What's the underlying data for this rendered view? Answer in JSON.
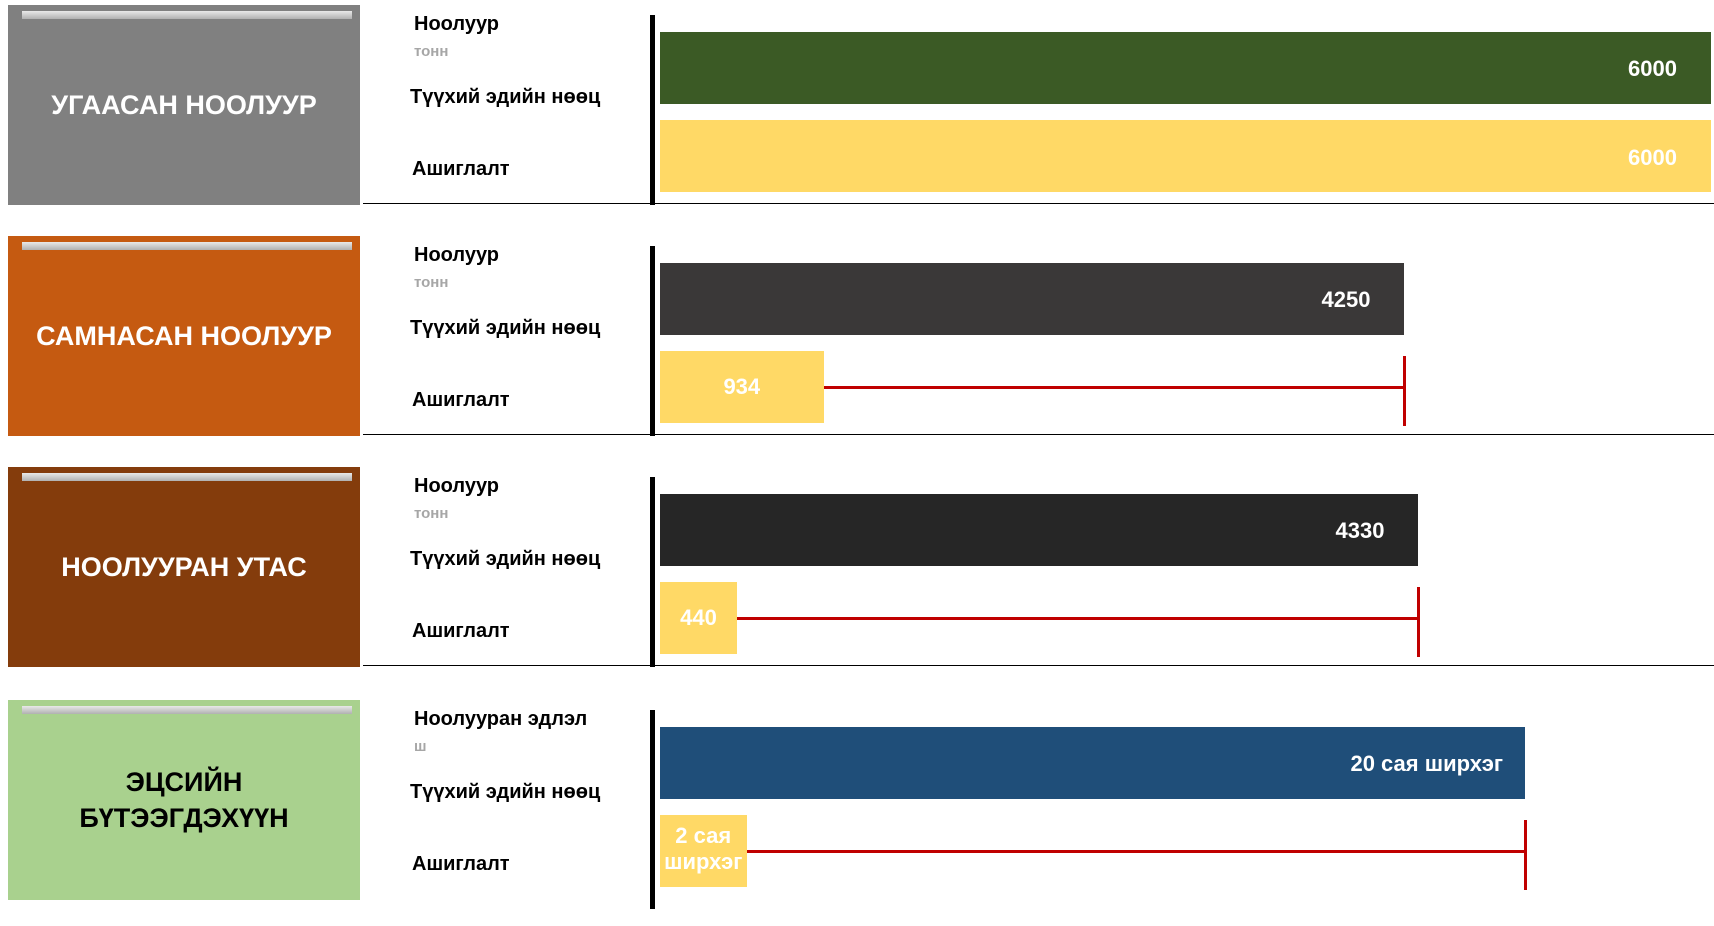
{
  "colors": {
    "muted_unit": "#a6a6a6",
    "gap_marker": "#c00000",
    "usage_bar": "#ffd966"
  },
  "chart_data": [
    {
      "type": "bar",
      "orientation": "horizontal",
      "panel_title": "УГААСАН НООЛУУР",
      "panel_color": "#808080",
      "panel_text_color": "#ffffff",
      "product_label": "Ноолуур",
      "unit": "тонн",
      "categories": [
        "Түүхий эдийн нөөц",
        "Ашиглалт"
      ],
      "values": [
        6000,
        6000
      ],
      "value_labels": [
        "6000",
        "6000"
      ],
      "bar_colors": [
        "#3b5a25",
        "#ffd966"
      ],
      "reserve_label_color": "#ffffff",
      "usage_label_color": "#ffffff",
      "show_gap": false,
      "xlim": [
        0,
        6000
      ]
    },
    {
      "type": "bar",
      "orientation": "horizontal",
      "panel_title": "САМНАСАН НООЛУУР",
      "panel_color": "#c55a11",
      "panel_text_color": "#ffffff",
      "product_label": "Ноолуур",
      "unit": "тонн",
      "categories": [
        "Түүхий эдийн нөөц",
        "Ашиглалт"
      ],
      "values": [
        4250,
        934
      ],
      "value_labels": [
        "4250",
        "934"
      ],
      "bar_colors": [
        "#3a3838",
        "#ffd966"
      ],
      "reserve_label_color": "#ffffff",
      "usage_label_color": "#ffffff",
      "show_gap": true,
      "xlim": [
        0,
        6000
      ]
    },
    {
      "type": "bar",
      "orientation": "horizontal",
      "panel_title": "НООЛУУРАН УТАС",
      "panel_color": "#843c0c",
      "panel_text_color": "#ffffff",
      "product_label": "Ноолуур",
      "unit": "тонн",
      "categories": [
        "Түүхий эдийн нөөц",
        "Ашиглалт"
      ],
      "values": [
        4330,
        440
      ],
      "value_labels": [
        "4330",
        "440"
      ],
      "bar_colors": [
        "#262626",
        "#ffd966"
      ],
      "reserve_label_color": "#ffffff",
      "usage_label_color": "#ffffff",
      "show_gap": true,
      "xlim": [
        0,
        6000
      ]
    },
    {
      "type": "bar",
      "orientation": "horizontal",
      "panel_title": "ЭЦСИЙН БҮТЭЭГДЭХҮҮН",
      "panel_color": "#a9d18e",
      "panel_text_color": "#000000",
      "product_label": "Ноолууран эдлэл",
      "unit": "ш",
      "categories": [
        "Түүхий эдийн нөөц",
        "Ашиглалт"
      ],
      "values": [
        20,
        2
      ],
      "value_labels": [
        "20 сая ширхэг",
        "2 сая ширхэг"
      ],
      "bar_colors": [
        "#1f4e79",
        "#ffd966"
      ],
      "reserve_label_color": "#ffffff",
      "usage_label_color": "#ffffff",
      "show_gap": true,
      "xlim": [
        0,
        24.3
      ]
    }
  ]
}
